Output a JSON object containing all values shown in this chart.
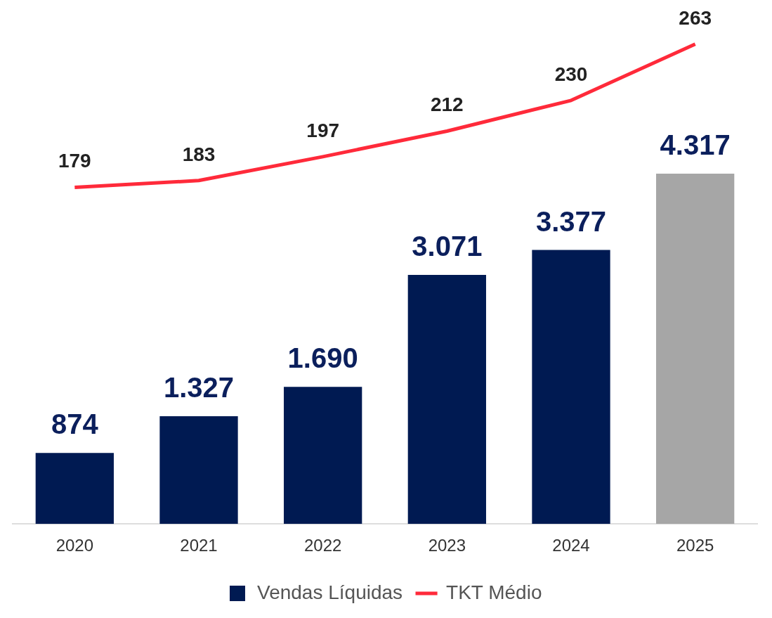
{
  "chart_data": {
    "type": "bar",
    "categories": [
      "2020",
      "2021",
      "2022",
      "2023",
      "2024",
      "2025"
    ],
    "series": [
      {
        "name": "Vendas Líquidas",
        "colors": [
          "#001a52",
          "#001a52",
          "#001a52",
          "#001a52",
          "#001a52",
          "#a6a6a6"
        ],
        "values": [
          874,
          1327,
          1690,
          3071,
          3377,
          4317
        ],
        "value_labels": [
          "874",
          "1.327",
          "1.690",
          "3.071",
          "3.377",
          "4.317"
        ]
      },
      {
        "name": "TKT Médio",
        "type": "line",
        "axis": "y2",
        "color": "#ff2a3a",
        "values": [
          179,
          183,
          197,
          212,
          230,
          263
        ],
        "value_labels": [
          "179",
          "183",
          "197",
          "212",
          "230",
          "263"
        ]
      }
    ],
    "grid": false,
    "legend": "bottom",
    "marker": "none",
    "line_style": "solid"
  }
}
